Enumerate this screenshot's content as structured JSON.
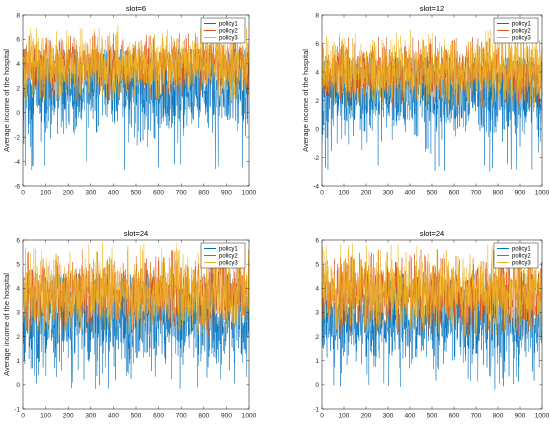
{
  "colors": {
    "policy1": "#0072BD",
    "policy2": "#D95319",
    "policy3": "#EDB120",
    "axis": "#262626",
    "background": "#ffffff"
  },
  "chart_data": [
    {
      "type": "line",
      "title": "slot=6",
      "ylabel": "Average income of the hospital",
      "xlim": [
        0,
        1000
      ],
      "ylim": [
        -6,
        8
      ],
      "xticks": [
        0,
        100,
        200,
        300,
        400,
        500,
        600,
        700,
        800,
        900,
        1000
      ],
      "yticks": [
        -6,
        -4,
        -2,
        0,
        2,
        4,
        6,
        8
      ],
      "legend": "top-right",
      "grid": false,
      "series": [
        {
          "name": "policy1",
          "color": "#0072BD",
          "n_points": 1000,
          "approx_mean": 2.0,
          "approx_min": -4.8,
          "approx_max": 5.2
        },
        {
          "name": "policy2",
          "color": "#D95319",
          "n_points": 1000,
          "approx_mean": 4.0,
          "approx_min": 1.0,
          "approx_max": 6.5
        },
        {
          "name": "policy3",
          "color": "#EDB120",
          "n_points": 1000,
          "approx_mean": 4.0,
          "approx_min": 1.0,
          "approx_max": 7.2
        }
      ]
    },
    {
      "type": "line",
      "title": "slot=12",
      "ylabel": "Average income of the hospital",
      "xlim": [
        0,
        1000
      ],
      "ylim": [
        -4,
        8
      ],
      "xticks": [
        0,
        100,
        200,
        300,
        400,
        500,
        600,
        700,
        800,
        900,
        1000
      ],
      "yticks": [
        -4,
        -2,
        0,
        2,
        4,
        6,
        8
      ],
      "legend": "top-right",
      "grid": false,
      "series": [
        {
          "name": "policy1",
          "color": "#0072BD",
          "n_points": 1000,
          "approx_mean": 2.5,
          "approx_min": -3.0,
          "approx_max": 5.0
        },
        {
          "name": "policy2",
          "color": "#D95319",
          "n_points": 1000,
          "approx_mean": 4.0,
          "approx_min": 1.5,
          "approx_max": 6.5
        },
        {
          "name": "policy3",
          "color": "#EDB120",
          "n_points": 1000,
          "approx_mean": 4.0,
          "approx_min": 1.5,
          "approx_max": 7.0
        }
      ]
    },
    {
      "type": "line",
      "title": "slot=24",
      "ylabel": "Average income of the hospital",
      "xlim": [
        0,
        1000
      ],
      "ylim": [
        -1,
        6
      ],
      "xticks": [
        0,
        100,
        200,
        300,
        400,
        500,
        600,
        700,
        800,
        900,
        1000
      ],
      "yticks": [
        -1,
        0,
        1,
        2,
        3,
        4,
        5,
        6
      ],
      "legend": "top-right",
      "grid": false,
      "series": [
        {
          "name": "policy1",
          "color": "#0072BD",
          "n_points": 1000,
          "approx_mean": 2.7,
          "approx_min": -0.2,
          "approx_max": 4.6
        },
        {
          "name": "policy2",
          "color": "#D95319",
          "n_points": 1000,
          "approx_mean": 3.8,
          "approx_min": 2.0,
          "approx_max": 5.6
        },
        {
          "name": "policy3",
          "color": "#EDB120",
          "n_points": 1000,
          "approx_mean": 3.8,
          "approx_min": 2.0,
          "approx_max": 5.9
        }
      ]
    },
    {
      "type": "line",
      "title": "slot=24",
      "ylabel": "",
      "xlim": [
        0,
        1000
      ],
      "ylim": [
        -1,
        6
      ],
      "xticks": [
        0,
        100,
        200,
        300,
        400,
        500,
        600,
        700,
        800,
        900,
        1000
      ],
      "yticks": [
        -1,
        0,
        1,
        2,
        3,
        4,
        5,
        6
      ],
      "legend": "top-right",
      "grid": false,
      "series": [
        {
          "name": "policy1",
          "color": "#0072BD",
          "n_points": 1000,
          "approx_mean": 2.7,
          "approx_min": -0.2,
          "approx_max": 4.6
        },
        {
          "name": "policy2",
          "color": "#D95319",
          "n_points": 1000,
          "approx_mean": 3.8,
          "approx_min": 2.0,
          "approx_max": 5.6
        },
        {
          "name": "policy3",
          "color": "#EDB120",
          "n_points": 1000,
          "approx_mean": 3.8,
          "approx_min": 2.0,
          "approx_max": 5.9
        }
      ]
    }
  ]
}
